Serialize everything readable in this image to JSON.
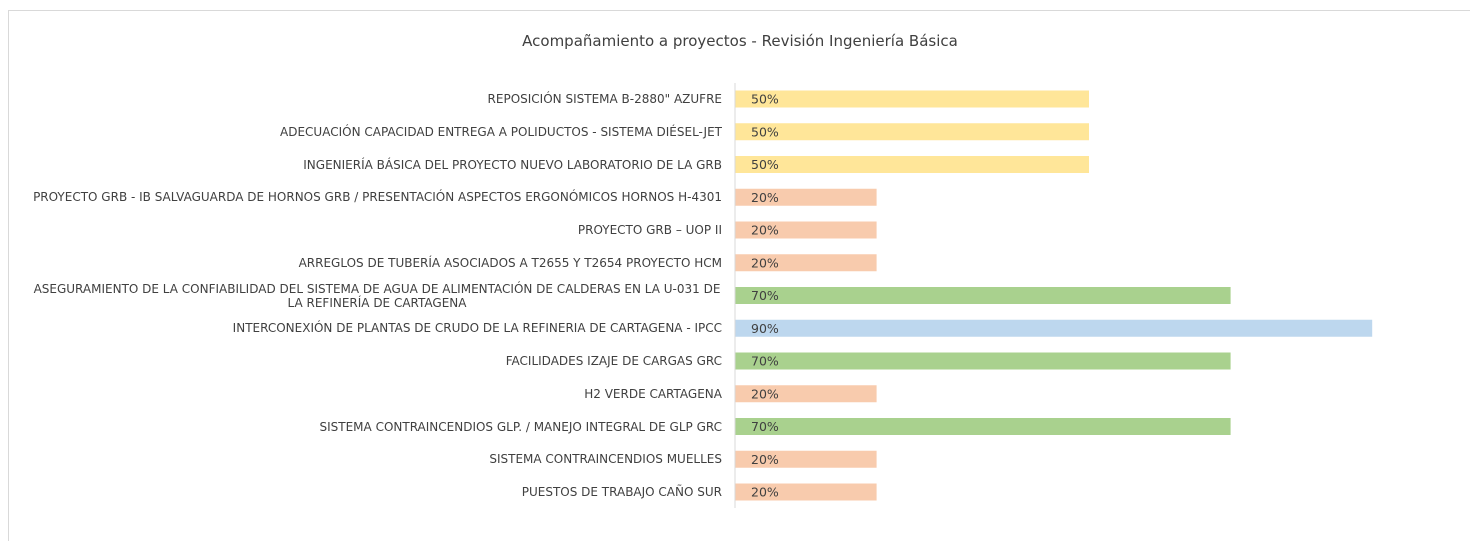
{
  "chart_data": {
    "type": "bar",
    "orientation": "horizontal",
    "title": "Acompañamiento a proyectos - Revisión Ingeniería Básica",
    "categories": [
      "REPOSICIÓN SISTEMA B-2880\" AZUFRE",
      "ADECUACIÓN CAPACIDAD ENTREGA A POLIDUCTOS - SISTEMA DIÉSEL-JET",
      "INGENIERÍA BÁSICA DEL PROYECTO NUEVO LABORATORIO DE LA GRB",
      "PROYECTO GRB -  IB SALVAGUARDA DE HORNOS GRB / PRESENTACIÓN ASPECTOS ERGONÓMICOS HORNOS H-4301",
      "PROYECTO GRB – UOP II",
      "ARREGLOS DE TUBERÍA ASOCIADOS A T2655 Y T2654 PROYECTO HCM",
      "ASEGURAMIENTO DE LA CONFIABILIDAD DEL SISTEMA DE AGUA DE ALIMENTACIÓN DE CALDERAS EN LA U-031 DE LA REFINERÍA DE CARTAGENA",
      "INTERCONEXIÓN DE PLANTAS DE CRUDO DE LA REFINERIA DE CARTAGENA - IPCC",
      "FACILIDADES IZAJE DE CARGAS GRC",
      "H2 VERDE CARTAGENA",
      "SISTEMA CONTRAINCENDIOS GLP. / MANEJO INTEGRAL DE GLP GRC",
      "SISTEMA CONTRAINCENDIOS MUELLES",
      "PUESTOS DE TRABAJO CAÑO SUR"
    ],
    "values": [
      50,
      50,
      50,
      20,
      20,
      20,
      70,
      90,
      70,
      20,
      70,
      20,
      20
    ],
    "value_labels": [
      "50%",
      "50%",
      "50%",
      "20%",
      "20%",
      "20%",
      "70%",
      "90%",
      "70%",
      "20%",
      "70%",
      "20%",
      "20%"
    ],
    "colors": [
      "#ffe699",
      "#ffe699",
      "#ffe699",
      "#f8cbad",
      "#f8cbad",
      "#f8cbad",
      "#a9d18e",
      "#bdd7ee",
      "#a9d18e",
      "#f8cbad",
      "#a9d18e",
      "#f8cbad",
      "#f8cbad"
    ],
    "xlim": [
      0,
      100
    ]
  }
}
